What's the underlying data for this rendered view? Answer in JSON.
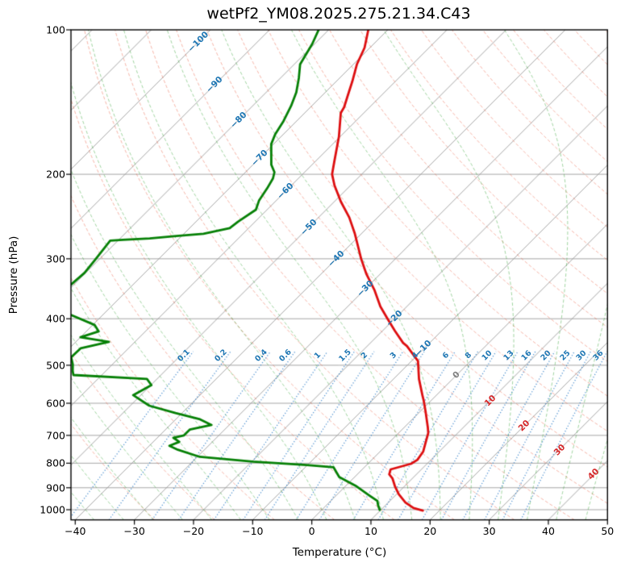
{
  "title": "wetPf2_YM08.2025.275.21.34.C43",
  "x_axis": {
    "label": "Temperature (°C)",
    "ticks": [
      -40,
      -30,
      -20,
      -10,
      0,
      10,
      20,
      30,
      40,
      50
    ]
  },
  "y_axis": {
    "label": "Pressure (hPa)",
    "ticks": [
      100,
      200,
      300,
      400,
      500,
      600,
      700,
      800,
      900,
      1000
    ]
  },
  "chart_data": {
    "type": "line",
    "title": "wetPf2_YM08.2025.275.21.34.C43",
    "xlabel": "Temperature (°C)",
    "ylabel": "Pressure (hPa)",
    "x_range_c": [
      -40,
      50
    ],
    "p_range_hpa": [
      1050,
      100
    ],
    "skew_deg": 45,
    "grid": true,
    "pressure_lines_hpa": [
      200,
      300,
      400,
      500,
      600,
      700,
      800,
      900,
      1000
    ],
    "isotherms": {
      "min_c": -120,
      "max_c": 50,
      "step_c": 10,
      "line_color": "#9b9b9b",
      "neg_label_color": "#1f77b4",
      "zero_label_color": "#808080",
      "pos_label_color": "#d62728",
      "labels": [
        {
          "t": -100,
          "p": 106
        },
        {
          "t": -90,
          "p": 130
        },
        {
          "t": -80,
          "p": 154
        },
        {
          "t": -70,
          "p": 185
        },
        {
          "t": -60,
          "p": 217
        },
        {
          "t": -50,
          "p": 258
        },
        {
          "t": -40,
          "p": 300
        },
        {
          "t": -30,
          "p": 347
        },
        {
          "t": -20,
          "p": 400
        },
        {
          "t": -10,
          "p": 462
        },
        {
          "t": 0,
          "p": 524
        },
        {
          "t": 10,
          "p": 593
        },
        {
          "t": 20,
          "p": 669
        },
        {
          "t": 30,
          "p": 750
        },
        {
          "t": 40,
          "p": 844
        }
      ]
    },
    "dry_adiabats": {
      "theta_min_c": -30,
      "theta_max_c": 200,
      "step_c": 10,
      "color": "rgba(232,88,60,0.45)"
    },
    "moist_adiabats": {
      "t0_min_c": -40,
      "t0_max_c": 45,
      "step_c": 5,
      "color": "rgba(44,160,44,0.45)"
    },
    "mixing_ratio": {
      "values_g_kg": [
        0.1,
        0.2,
        0.4,
        0.6,
        1,
        1.5,
        2,
        3,
        4,
        6,
        8,
        10,
        13,
        16,
        20,
        25,
        30,
        36
      ],
      "color": "rgba(47,126,200,0.85)",
      "label_color": "#1f77b4",
      "label_pressure_hpa": 478,
      "top_pressure_hpa": 468
    },
    "series": [
      {
        "name": "temperature",
        "color": "#dd0e10",
        "points_p_t": [
          [
            100,
            -73.3
          ],
          [
            109,
            -70.9
          ],
          [
            118,
            -69.4
          ],
          [
            128,
            -67.3
          ],
          [
            138,
            -65.5
          ],
          [
            145,
            -64.3
          ],
          [
            149,
            -63.9
          ],
          [
            167,
            -60.2
          ],
          [
            188,
            -56.8
          ],
          [
            200,
            -55.0
          ],
          [
            211,
            -52.7
          ],
          [
            228,
            -48.9
          ],
          [
            246,
            -44.8
          ],
          [
            266,
            -41.1
          ],
          [
            300,
            -35.8
          ],
          [
            323,
            -32.3
          ],
          [
            349,
            -28.2
          ],
          [
            377,
            -24.5
          ],
          [
            400,
            -21.2
          ],
          [
            424,
            -17.9
          ],
          [
            449,
            -14.5
          ],
          [
            456,
            -13.3
          ],
          [
            490,
            -8.9
          ],
          [
            534,
            -5.7
          ],
          [
            577,
            -2.4
          ],
          [
            593,
            -1.2
          ],
          [
            624,
            0.9
          ],
          [
            674,
            4.0
          ],
          [
            692,
            5.0
          ],
          [
            728,
            6.3
          ],
          [
            757,
            7.3
          ],
          [
            787,
            7.7
          ],
          [
            802,
            7.3
          ],
          [
            824,
            4.8
          ],
          [
            844,
            5.4
          ],
          [
            860,
            6.6
          ],
          [
            894,
            8.4
          ],
          [
            929,
            10.4
          ],
          [
            966,
            12.9
          ],
          [
            992,
            15.2
          ],
          [
            1004,
            17.2
          ]
        ]
      },
      {
        "name": "dewpoint",
        "color": "#068006",
        "points_p_t": [
          [
            100,
            -81.7
          ],
          [
            107,
            -80.4
          ],
          [
            118,
            -79.0
          ],
          [
            126,
            -76.9
          ],
          [
            135,
            -74.9
          ],
          [
            144,
            -73.5
          ],
          [
            155,
            -72.2
          ],
          [
            165,
            -71.4
          ],
          [
            173,
            -70.4
          ],
          [
            180,
            -69.0
          ],
          [
            191,
            -66.9
          ],
          [
            198,
            -65.1
          ],
          [
            204,
            -64.3
          ],
          [
            214,
            -63.6
          ],
          [
            227,
            -62.9
          ],
          [
            237,
            -61.9
          ],
          [
            251,
            -62.9
          ],
          [
            259,
            -63.2
          ],
          [
            266,
            -66.7
          ],
          [
            269,
            -70.9
          ],
          [
            272,
            -75.0
          ],
          [
            274,
            -79.3
          ],
          [
            275,
            -81.3
          ],
          [
            302,
            -80.6
          ],
          [
            321,
            -80.2
          ],
          [
            340,
            -80.5
          ],
          [
            355,
            -86.0
          ],
          [
            372,
            -86.0
          ],
          [
            392,
            -75.6
          ],
          [
            412,
            -69.7
          ],
          [
            425,
            -67.9
          ],
          [
            437,
            -70.0
          ],
          [
            447,
            -64.4
          ],
          [
            461,
            -68.1
          ],
          [
            481,
            -68.2
          ],
          [
            498,
            -66.7
          ],
          [
            514,
            -65.6
          ],
          [
            524,
            -64.8
          ],
          [
            534,
            -51.7
          ],
          [
            550,
            -49.9
          ],
          [
            577,
            -51.3
          ],
          [
            607,
            -46.8
          ],
          [
            629,
            -41.1
          ],
          [
            648,
            -35.9
          ],
          [
            666,
            -33.0
          ],
          [
            681,
            -35.9
          ],
          [
            700,
            -35.9
          ],
          [
            708,
            -37.3
          ],
          [
            722,
            -35.6
          ],
          [
            736,
            -36.6
          ],
          [
            750,
            -34.5
          ],
          [
            776,
            -29.6
          ],
          [
            794,
            -19.8
          ],
          [
            807,
            -10.1
          ],
          [
            816,
            -5.2
          ],
          [
            855,
            -2.6
          ],
          [
            891,
            1.6
          ],
          [
            934,
            5.6
          ],
          [
            959,
            7.9
          ],
          [
            978,
            8.7
          ],
          [
            1001,
            9.8
          ]
        ]
      }
    ]
  }
}
